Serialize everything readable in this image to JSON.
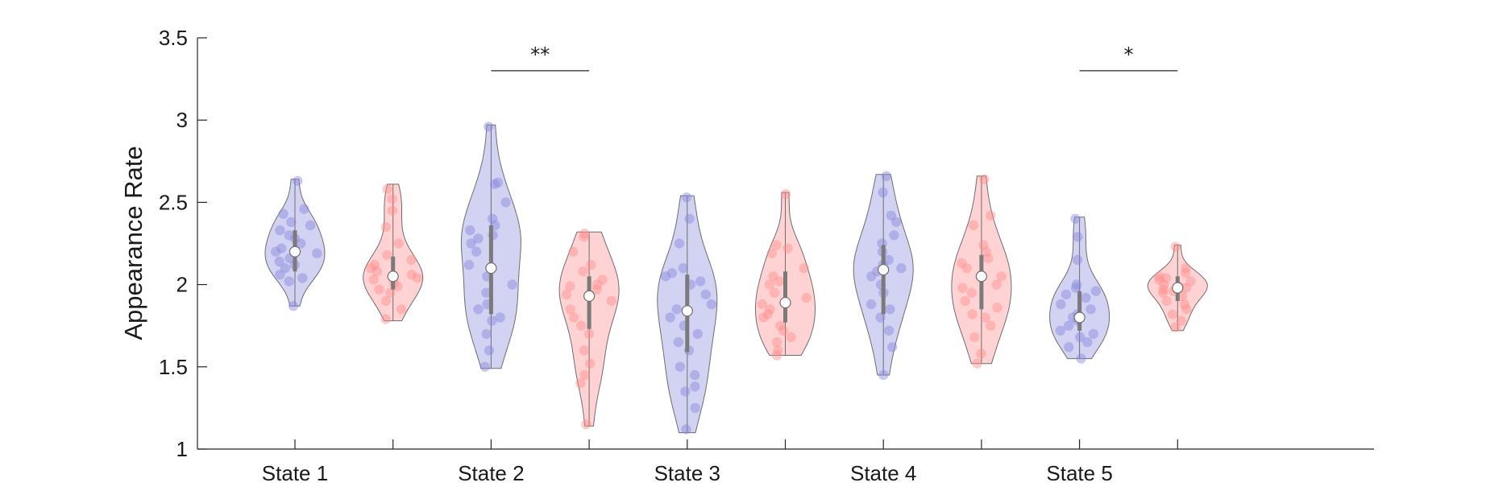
{
  "chart_data": {
    "type": "violin",
    "ylabel": "Appearance Rate",
    "xlabel": "",
    "title": "",
    "ylim": [
      1,
      3.5
    ],
    "yticks": [
      1,
      1.5,
      2,
      2.5,
      3,
      3.5
    ],
    "ytick_labels": [
      "1",
      "1.5",
      "2",
      "2.5",
      "3",
      "3.5"
    ],
    "grid": false,
    "legend": false,
    "categories": [
      "State 1",
      "State 2",
      "State 3",
      "State 4",
      "State 5"
    ],
    "series_colors": [
      "#8888dd",
      "#ff8c8c"
    ],
    "groups": [
      {
        "category": "State 1",
        "violins": [
          {
            "color": "#8888dd",
            "median": 2.2,
            "q1": 2.08,
            "q3": 2.33,
            "min": 1.87,
            "max": 2.64,
            "points": [
              2.63,
              2.46,
              2.43,
              2.38,
              2.36,
              2.33,
              2.3,
              2.28,
              2.25,
              2.22,
              2.2,
              2.19,
              2.16,
              2.14,
              2.12,
              2.1,
              2.06,
              2.04,
              2.02,
              1.87
            ]
          },
          {
            "color": "#ff8c8c",
            "median": 2.05,
            "q1": 1.97,
            "q3": 2.17,
            "min": 1.78,
            "max": 2.61,
            "points": [
              2.58,
              2.52,
              2.45,
              2.35,
              2.25,
              2.18,
              2.15,
              2.12,
              2.1,
              2.08,
              2.06,
              2.04,
              2.03,
              2.01,
              1.99,
              1.97,
              1.95,
              1.9,
              1.85,
              1.79
            ]
          }
        ]
      },
      {
        "category": "State 2",
        "violins": [
          {
            "color": "#8888dd",
            "median": 2.1,
            "q1": 1.82,
            "q3": 2.36,
            "min": 1.49,
            "max": 2.97,
            "points": [
              2.96,
              2.62,
              2.61,
              2.5,
              2.4,
              2.36,
              2.33,
              2.3,
              2.28,
              2.25,
              2.2,
              2.12,
              2.05,
              2.0,
              1.95,
              1.88,
              1.85,
              1.8,
              1.78,
              1.7,
              1.6,
              1.5
            ]
          },
          {
            "color": "#ff8c8c",
            "median": 1.93,
            "q1": 1.73,
            "q3": 2.05,
            "min": 1.14,
            "max": 2.32,
            "points": [
              2.31,
              2.29,
              2.2,
              2.12,
              2.08,
              2.03,
              2.0,
              1.99,
              1.97,
              1.94,
              1.9,
              1.85,
              1.8,
              1.75,
              1.7,
              1.6,
              1.52,
              1.45,
              1.4,
              1.15
            ]
          }
        ]
      },
      {
        "category": "State 3",
        "violins": [
          {
            "color": "#8888dd",
            "median": 1.84,
            "q1": 1.59,
            "q3": 2.06,
            "min": 1.1,
            "max": 2.54,
            "points": [
              2.53,
              2.4,
              2.25,
              2.1,
              2.07,
              2.05,
              2.02,
              2.0,
              1.94,
              1.88,
              1.85,
              1.8,
              1.75,
              1.7,
              1.65,
              1.6,
              1.5,
              1.45,
              1.38,
              1.35,
              1.25,
              1.12
            ]
          },
          {
            "color": "#ff8c8c",
            "median": 1.89,
            "q1": 1.77,
            "q3": 2.08,
            "min": 1.57,
            "max": 2.56,
            "points": [
              2.55,
              2.24,
              2.22,
              2.19,
              2.1,
              2.05,
              2.02,
              2.0,
              1.95,
              1.92,
              1.88,
              1.85,
              1.82,
              1.8,
              1.75,
              1.72,
              1.68,
              1.65,
              1.6,
              1.57
            ]
          }
        ]
      },
      {
        "category": "State 4",
        "violins": [
          {
            "color": "#8888dd",
            "median": 2.09,
            "q1": 1.82,
            "q3": 2.24,
            "min": 1.45,
            "max": 2.67,
            "points": [
              2.66,
              2.56,
              2.42,
              2.38,
              2.3,
              2.25,
              2.2,
              2.15,
              2.12,
              2.1,
              2.08,
              2.05,
              2.0,
              1.95,
              1.88,
              1.85,
              1.8,
              1.72,
              1.62,
              1.45
            ]
          },
          {
            "color": "#ff8c8c",
            "median": 2.05,
            "q1": 1.85,
            "q3": 2.18,
            "min": 1.52,
            "max": 2.66,
            "points": [
              2.64,
              2.42,
              2.36,
              2.24,
              2.2,
              2.16,
              2.13,
              2.1,
              2.05,
              2.0,
              1.98,
              1.95,
              1.9,
              1.86,
              1.82,
              1.8,
              1.75,
              1.68,
              1.58,
              1.52
            ]
          }
        ]
      },
      {
        "category": "State 5",
        "violins": [
          {
            "color": "#8888dd",
            "median": 1.8,
            "q1": 1.72,
            "q3": 1.96,
            "min": 1.55,
            "max": 2.41,
            "points": [
              2.4,
              2.29,
              2.15,
              2.0,
              1.98,
              1.96,
              1.94,
              1.92,
              1.88,
              1.85,
              1.82,
              1.8,
              1.78,
              1.75,
              1.72,
              1.7,
              1.68,
              1.65,
              1.62,
              1.55
            ]
          },
          {
            "color": "#ff8c8c",
            "median": 1.98,
            "q1": 1.9,
            "q3": 2.05,
            "min": 1.72,
            "max": 2.24,
            "points": [
              2.23,
              2.1,
              2.07,
              2.05,
              2.04,
              2.03,
              2.02,
              2.0,
              1.99,
              1.98,
              1.97,
              1.96,
              1.95,
              1.93,
              1.9,
              1.88,
              1.85,
              1.82,
              1.78,
              1.74
            ]
          }
        ]
      }
    ],
    "annotations": [
      {
        "label": "**",
        "from": "State 2",
        "y": 3.3
      },
      {
        "label": "*",
        "from": "State 5",
        "y": 3.3
      }
    ]
  }
}
